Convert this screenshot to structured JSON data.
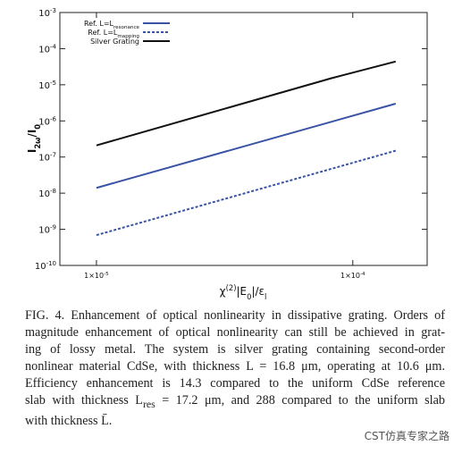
{
  "chart_data": {
    "type": "line",
    "x_label": "χ^{(2)}|E_{0}|/ε_{l}",
    "y_label": "I_{2ω}/I_{0}",
    "xscale": "log",
    "yscale": "log",
    "xlim": [
      7.2e-06,
      0.000195
    ],
    "ylim": [
      1e-10,
      0.001
    ],
    "xticks": [
      {
        "value": 1e-05,
        "label": "1×10^{-5}"
      },
      {
        "value": 0.0001,
        "label": "1×10^{-4}"
      }
    ],
    "yticks": [
      {
        "value": 1e-10,
        "label": "10^{-10}"
      },
      {
        "value": 1e-09,
        "label": "10^{-9}"
      },
      {
        "value": 1e-08,
        "label": "10^{-8}"
      },
      {
        "value": 1e-07,
        "label": "10^{-7}"
      },
      {
        "value": 1e-06,
        "label": "10^{-6}"
      },
      {
        "value": 1e-05,
        "label": "10^{-5}"
      },
      {
        "value": 0.0001,
        "label": "10^{-4}"
      },
      {
        "value": 0.001,
        "label": "10^{-3}"
      }
    ],
    "legend": "upper left",
    "series": [
      {
        "name": "Ref. L=L_{resonance}",
        "color": "#3a53a4",
        "dash": "solid",
        "x": [
          1e-05,
          0.000147
        ],
        "values": [
          1.4e-08,
          3e-06
        ]
      },
      {
        "name": "Ref. L=L_{mapping}",
        "color": "#3a53a4",
        "dash": "dashed",
        "x": [
          1e-05,
          0.000147
        ],
        "values": [
          6.9e-10,
          1.5e-07
        ]
      },
      {
        "name": "Silver Grating",
        "color": "#111111",
        "dash": "solid",
        "x": [
          1e-05,
          8.2e-05,
          0.000147
        ],
        "values": [
          2.1e-07,
          1.5e-05,
          4.4e-05
        ]
      }
    ]
  },
  "caption": [
    "FIG. 4. Enhancement of optical nonlinearity in dissipative grating. Orders of",
    "magnitude enhancement of optical nonlinearity can still be achieved in grat-",
    "ing of lossy metal. The system is silver grating containing second-order",
    "nonlinear material CdSe, with thickness L = 16.8 μm, operating at 10.6 μm.",
    "Efficiency enhancement is 14.3 compared to the uniform CdSe reference",
    "slab with thickness L_{res} = 17.2  μm, and 288 compared to the uniform slab",
    "with thickness L̄."
  ],
  "watermark": "CST仿真专家之路"
}
